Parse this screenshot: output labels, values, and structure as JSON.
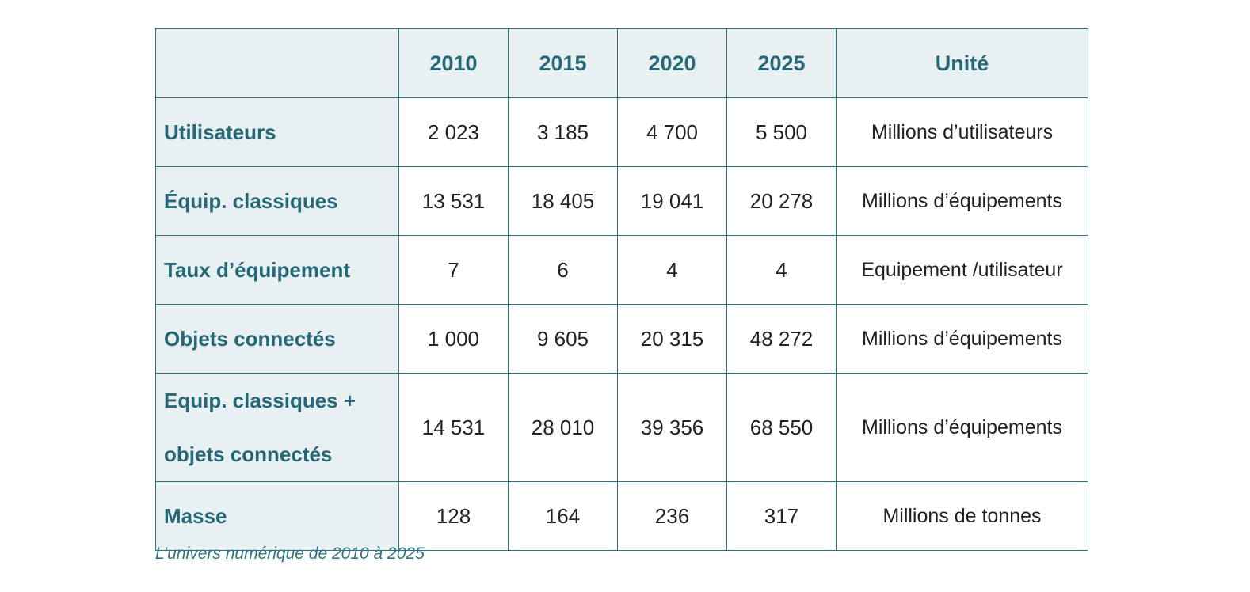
{
  "table": {
    "header": {
      "corner": "",
      "years": [
        "2010",
        "2015",
        "2020",
        "2025"
      ],
      "unit": "Unité"
    },
    "rows": [
      {
        "label_line1": "Utilisateurs",
        "label_line2": "",
        "values": [
          "2 023",
          "3 185",
          "4 700",
          "5 500"
        ],
        "unit": "Millions d’utilisateurs"
      },
      {
        "label_line1": "Équip. classiques",
        "label_line2": "",
        "values": [
          "13 531",
          "18 405",
          "19 041",
          "20 278"
        ],
        "unit": "Millions d’équipements"
      },
      {
        "label_line1": "Taux d’équipement",
        "label_line2": "",
        "values": [
          "7",
          "6",
          "4",
          "4"
        ],
        "unit": "Equipement /utilisateur"
      },
      {
        "label_line1": "Objets connectés",
        "label_line2": "",
        "values": [
          "1 000",
          "9 605",
          "20 315",
          "48 272"
        ],
        "unit": "Millions d’équipements"
      },
      {
        "label_line1": "Equip. classiques +",
        "label_line2": "objets connectés",
        "values": [
          "14 531",
          "28 010",
          "39 356",
          "68 550"
        ],
        "unit": "Millions d’équipements"
      },
      {
        "label_line1": "Masse",
        "label_line2": "",
        "values": [
          "128",
          "164",
          "236",
          "317"
        ],
        "unit": "Millions de tonnes"
      }
    ]
  },
  "caption": "L’univers numérique de 2010 à 2025",
  "colors": {
    "accent": "#256878",
    "header_bg": "#e8f0f1",
    "border": "#2e6f80",
    "text": "#222222"
  }
}
